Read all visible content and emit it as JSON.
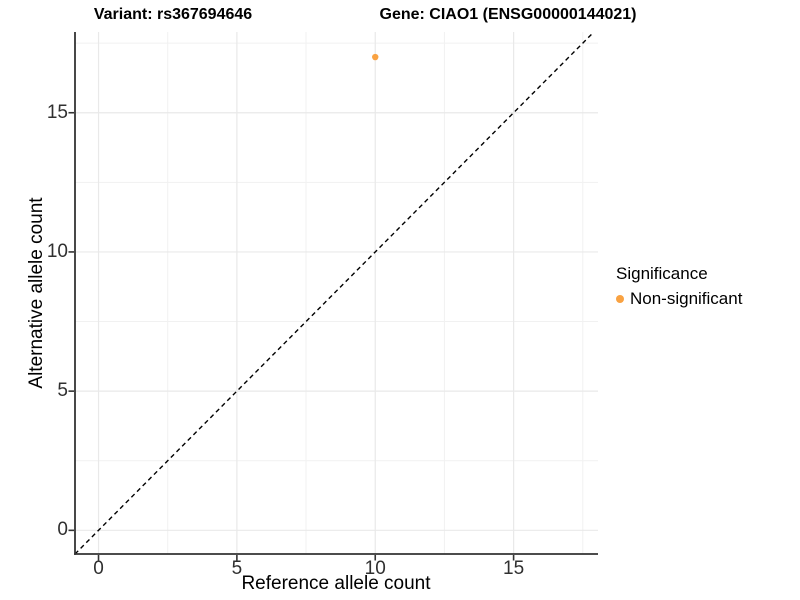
{
  "chart_data": {
    "type": "scatter",
    "title_left": "Variant: rs367694646",
    "title_right": "Gene: CIAO1 (ENSG00000144021)",
    "xlabel": "Reference allele count",
    "ylabel": "Alternative allele count",
    "xlim": [
      -0.85,
      18.05
    ],
    "ylim": [
      -0.85,
      17.9
    ],
    "x_tick_labels": [
      "0",
      "5",
      "10",
      "15"
    ],
    "x_tick_values": [
      0,
      5,
      10,
      15
    ],
    "y_tick_labels": [
      "0",
      "5",
      "10",
      "15"
    ],
    "y_tick_values": [
      0,
      5,
      10,
      15
    ],
    "x_minor_tick_values": [
      2.5,
      7.5,
      12.5,
      17.5
    ],
    "y_minor_tick_values": [
      2.5,
      7.5,
      12.5,
      17.5
    ],
    "grid": "major and minor, light gray on white",
    "series": [
      {
        "name": "Non-significant",
        "color": "#F9A242",
        "points": [
          {
            "x": 10,
            "y": 17
          }
        ]
      }
    ],
    "reference_line": {
      "style": "dashed",
      "color": "#000000",
      "from": [
        -0.85,
        -0.85
      ],
      "to": [
        17.9,
        17.9
      ]
    },
    "legend": {
      "title": "Significance",
      "position": "right",
      "entries": [
        {
          "label": "Non-significant",
          "color": "#F9A242"
        }
      ]
    }
  },
  "colors": {
    "background": "#FFFFFF",
    "grid_major": "#E9E9E9",
    "grid_minor": "#F1F1F1",
    "axis_line": "#333333",
    "tick_label": "#303030",
    "point": "#F9A242",
    "reference_line": "#000000"
  },
  "icons": {
    "legend_point": "filled-circle"
  }
}
